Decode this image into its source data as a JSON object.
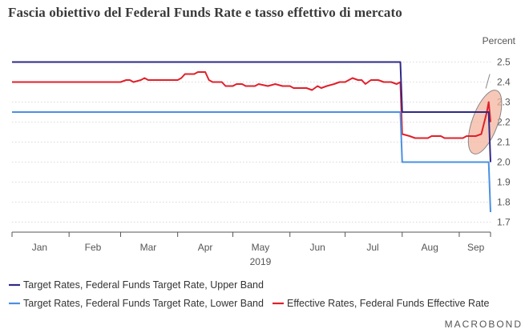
{
  "chart_data": {
    "type": "line",
    "title": "Fascia obiettivo del Federal Funds Rate e tasso effettivo di mercato",
    "unit_label": "Percent",
    "ylim": [
      1.65,
      2.55
    ],
    "y_ticks": [
      2.5,
      2.4,
      2.3,
      2.2,
      2.1,
      2.0,
      1.9,
      1.8,
      1.7
    ],
    "y_tick_labels": [
      "2.5",
      "2.4",
      "2.3",
      "2.2",
      "2.1",
      "2.0",
      "1.9",
      "1.8",
      "1.7"
    ],
    "xlim": [
      "2019-01-01",
      "2019-09-18"
    ],
    "month_ticks": [
      "2019-01-01",
      "2019-02-01",
      "2019-03-01",
      "2019-04-01",
      "2019-05-01",
      "2019-06-01",
      "2019-07-01",
      "2019-08-01",
      "2019-09-01"
    ],
    "month_labels": [
      {
        "label": "Jan",
        "date": "2019-01-16"
      },
      {
        "label": "Feb",
        "date": "2019-02-14"
      },
      {
        "label": "Mar",
        "date": "2019-03-16"
      },
      {
        "label": "Apr",
        "date": "2019-04-16"
      },
      {
        "label": "May",
        "date": "2019-05-16"
      },
      {
        "label": "Jun",
        "date": "2019-06-16"
      },
      {
        "label": "Jul",
        "date": "2019-07-16"
      },
      {
        "label": "Aug",
        "date": "2019-08-16"
      },
      {
        "label": "Sep",
        "date": "2019-09-10"
      }
    ],
    "year_label": {
      "label": "2019",
      "date": "2019-05-16"
    },
    "series": [
      {
        "name": "Target Rates, Federal Funds Target Rate, Upper Band",
        "color": "#2e2a86",
        "points": [
          [
            "2019-01-01",
            2.5
          ],
          [
            "2019-07-31",
            2.5
          ],
          [
            "2019-08-01",
            2.25
          ],
          [
            "2019-09-17",
            2.25
          ],
          [
            "2019-09-18",
            2.0
          ]
        ]
      },
      {
        "name": "Target Rates, Federal Funds Target Rate, Lower Band",
        "color": "#4a90e2",
        "points": [
          [
            "2019-01-01",
            2.25
          ],
          [
            "2019-07-31",
            2.25
          ],
          [
            "2019-08-01",
            2.0
          ],
          [
            "2019-09-17",
            2.0
          ],
          [
            "2019-09-18",
            1.75
          ]
        ]
      },
      {
        "name": "Effective Rates, Federal Funds Effective Rate",
        "color": "#e0202a",
        "points": [
          [
            "2019-01-01",
            2.4
          ],
          [
            "2019-03-01",
            2.4
          ],
          [
            "2019-03-04",
            2.41
          ],
          [
            "2019-03-06",
            2.41
          ],
          [
            "2019-03-08",
            2.4
          ],
          [
            "2019-03-12",
            2.41
          ],
          [
            "2019-03-14",
            2.42
          ],
          [
            "2019-03-16",
            2.41
          ],
          [
            "2019-04-01",
            2.41
          ],
          [
            "2019-04-03",
            2.42
          ],
          [
            "2019-04-05",
            2.44
          ],
          [
            "2019-04-10",
            2.44
          ],
          [
            "2019-04-12",
            2.45
          ],
          [
            "2019-04-16",
            2.45
          ],
          [
            "2019-04-18",
            2.41
          ],
          [
            "2019-04-20",
            2.4
          ],
          [
            "2019-04-25",
            2.4
          ],
          [
            "2019-04-27",
            2.38
          ],
          [
            "2019-05-01",
            2.38
          ],
          [
            "2019-05-03",
            2.39
          ],
          [
            "2019-05-06",
            2.39
          ],
          [
            "2019-05-08",
            2.38
          ],
          [
            "2019-05-13",
            2.38
          ],
          [
            "2019-05-15",
            2.39
          ],
          [
            "2019-05-20",
            2.38
          ],
          [
            "2019-05-24",
            2.39
          ],
          [
            "2019-05-28",
            2.38
          ],
          [
            "2019-06-01",
            2.38
          ],
          [
            "2019-06-03",
            2.37
          ],
          [
            "2019-06-10",
            2.37
          ],
          [
            "2019-06-13",
            2.36
          ],
          [
            "2019-06-16",
            2.38
          ],
          [
            "2019-06-18",
            2.37
          ],
          [
            "2019-06-21",
            2.38
          ],
          [
            "2019-06-25",
            2.39
          ],
          [
            "2019-06-28",
            2.4
          ],
          [
            "2019-07-01",
            2.4
          ],
          [
            "2019-07-05",
            2.42
          ],
          [
            "2019-07-08",
            2.41
          ],
          [
            "2019-07-10",
            2.41
          ],
          [
            "2019-07-12",
            2.39
          ],
          [
            "2019-07-15",
            2.41
          ],
          [
            "2019-07-19",
            2.41
          ],
          [
            "2019-07-22",
            2.4
          ],
          [
            "2019-07-26",
            2.4
          ],
          [
            "2019-07-29",
            2.39
          ],
          [
            "2019-07-31",
            2.4
          ],
          [
            "2019-08-01",
            2.14
          ],
          [
            "2019-08-05",
            2.13
          ],
          [
            "2019-08-08",
            2.12
          ],
          [
            "2019-08-15",
            2.12
          ],
          [
            "2019-08-17",
            2.13
          ],
          [
            "2019-08-22",
            2.13
          ],
          [
            "2019-08-24",
            2.12
          ],
          [
            "2019-09-03",
            2.12
          ],
          [
            "2019-09-05",
            2.13
          ],
          [
            "2019-09-10",
            2.13
          ],
          [
            "2019-09-13",
            2.14
          ],
          [
            "2019-09-16",
            2.25
          ],
          [
            "2019-09-17",
            2.3
          ],
          [
            "2019-09-18",
            2.2
          ]
        ]
      }
    ],
    "highlight": {
      "label": "circled spike",
      "center": [
        "2019-09-15",
        2.2
      ],
      "color": "#f4b5a0"
    }
  },
  "brand": {
    "text": "MACROBOND"
  }
}
